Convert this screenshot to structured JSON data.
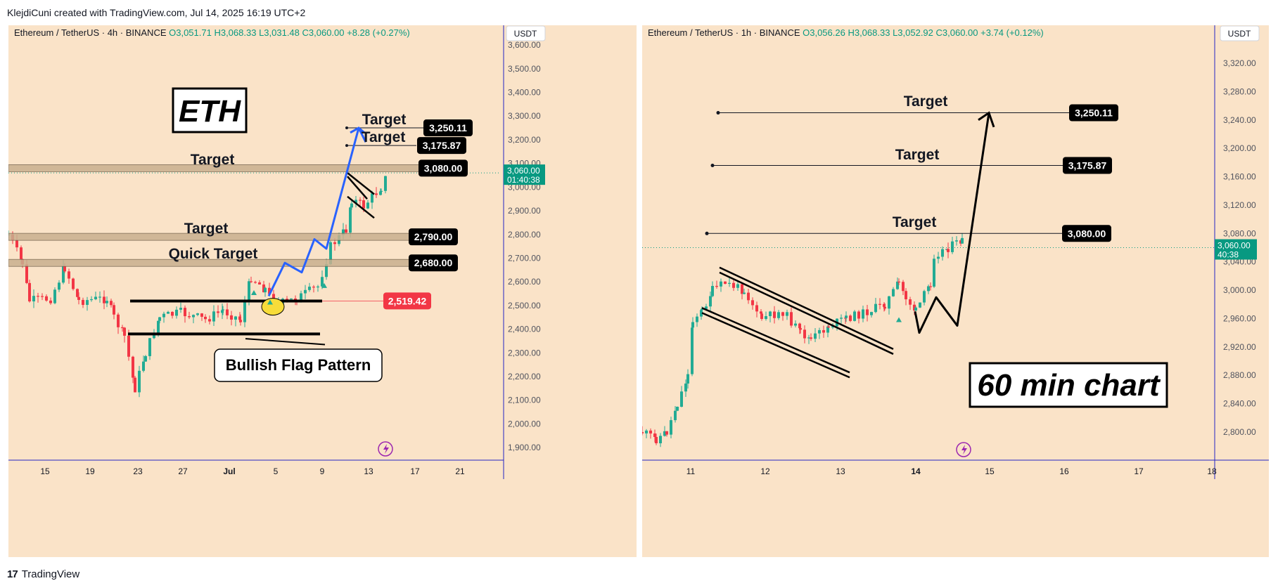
{
  "header": {
    "credit": "KlejdiCuni created with TradingView.com, Jul 14, 2025 16:19 UTC+2"
  },
  "footer": {
    "logo": "17",
    "brand": "TradingView"
  },
  "colors": {
    "bg": "#fae3c8",
    "up": "#22ab94",
    "down": "#f23645",
    "blue_arrow": "#2962ff",
    "axis_blue": "#2424c4"
  },
  "chart_data": [
    {
      "type": "candlestick",
      "symbol": "Ethereum / TetherUS",
      "interval": "4h",
      "exchange": "BINANCE",
      "ohlc_text": {
        "o": "O3,051.71",
        "h": "H3,068.33",
        "l": "L3,031.48",
        "c": "C3,060.00",
        "chg": "+8.28 (+0.27%)"
      },
      "currency": "USDT",
      "ylim": [
        1850,
        3670
      ],
      "y_ticks": [
        "3,600.00",
        "3,500.00",
        "3,400.00",
        "3,300.00",
        "3,200.00",
        "3,100.00",
        "3,000.00",
        "2,900.00",
        "2,800.00",
        "2,700.00",
        "2,600.00",
        "2,500.00",
        "2,400.00",
        "2,300.00",
        "2,200.00",
        "2,100.00",
        "2,000.00",
        "1,900.00"
      ],
      "x_ticks": [
        "15",
        "19",
        "23",
        "27",
        "Jul",
        "5",
        "9",
        "13",
        "17",
        "21"
      ],
      "last_price": {
        "price": "3,060.00",
        "countdown": "01:40:38"
      },
      "price_labels": [
        {
          "label": "3,250.11",
          "value": 3250.11
        },
        {
          "label": "3,175.87",
          "value": 3175.87
        },
        {
          "label": "3,080.00",
          "value": 3080
        },
        {
          "label": "2,790.00",
          "value": 2790
        },
        {
          "label": "2,680.00",
          "value": 2680
        },
        {
          "label": "2,519.42",
          "value": 2519.42,
          "color": "#f23645"
        }
      ],
      "annotations": {
        "ticker_box": "ETH",
        "target": "Target",
        "quick_target": "Quick Target",
        "pattern": "Bullish Flag Pattern"
      },
      "key_points": [
        {
          "x": "Jun 11",
          "y": 2800
        },
        {
          "x": "Jun 13",
          "y": 2670
        },
        {
          "x": "Jun 16",
          "y": 2680
        },
        {
          "x": "Jun 20",
          "y": 2450
        },
        {
          "x": "Jun 22",
          "y": 2150
        },
        {
          "x": "Jun 25",
          "y": 2420
        },
        {
          "x": "Jul 1",
          "y": 2430
        },
        {
          "x": "Jul 3",
          "y": 2620
        },
        {
          "x": "Jul 5",
          "y": 2500
        },
        {
          "x": "Jul 9",
          "y": 2750
        },
        {
          "x": "Jul 11",
          "y": 2960
        },
        {
          "x": "Jul 12",
          "y": 2920
        },
        {
          "x": "Jul 14",
          "y": 3060
        }
      ]
    },
    {
      "type": "candlestick",
      "symbol": "Ethereum / TetherUS",
      "interval": "1h",
      "exchange": "BINANCE",
      "ohlc_text": {
        "o": "O3,056.26",
        "h": "H3,068.33",
        "l": "L3,052.92",
        "c": "C3,060.00",
        "chg": "+3.74 (+0.12%)"
      },
      "currency": "USDT",
      "ylim": [
        2760,
        3340
      ],
      "y_ticks": [
        "3,320.00",
        "3,280.00",
        "3,240.00",
        "3,200.00",
        "3,160.00",
        "3,120.00",
        "3,080.00",
        "3,040.00",
        "3,000.00",
        "2,960.00",
        "2,920.00",
        "2,880.00",
        "2,840.00",
        "2,800.00"
      ],
      "x_ticks": [
        "11",
        "12",
        "13",
        "14",
        "15",
        "16",
        "17",
        "18"
      ],
      "last_price": {
        "price": "3,060.00",
        "countdown": "40:38"
      },
      "price_labels": [
        {
          "label": "3,250.11",
          "value": 3250.11
        },
        {
          "label": "3,175.87",
          "value": 3175.87
        },
        {
          "label": "3,080.00",
          "value": 3080
        }
      ],
      "annotations": {
        "target": "Target",
        "caption": "60 min chart"
      },
      "key_points": [
        {
          "x": "Jul 10 08:00",
          "y": 2790
        },
        {
          "x": "Jul 10 18:00",
          "y": 2850
        },
        {
          "x": "Jul 11 00:00",
          "y": 2980
        },
        {
          "x": "Jul 11 12:00",
          "y": 3030
        },
        {
          "x": "Jul 12 12:00",
          "y": 2950
        },
        {
          "x": "Jul 12 20:00",
          "y": 2920
        },
        {
          "x": "Jul 13 18:00",
          "y": 2970
        },
        {
          "x": "Jul 13 23:00",
          "y": 3010
        },
        {
          "x": "Jul 14 04:00",
          "y": 2950
        },
        {
          "x": "Jul 14 12:00",
          "y": 3080
        },
        {
          "x": "Jul 14 16:00",
          "y": 3060
        }
      ]
    }
  ]
}
